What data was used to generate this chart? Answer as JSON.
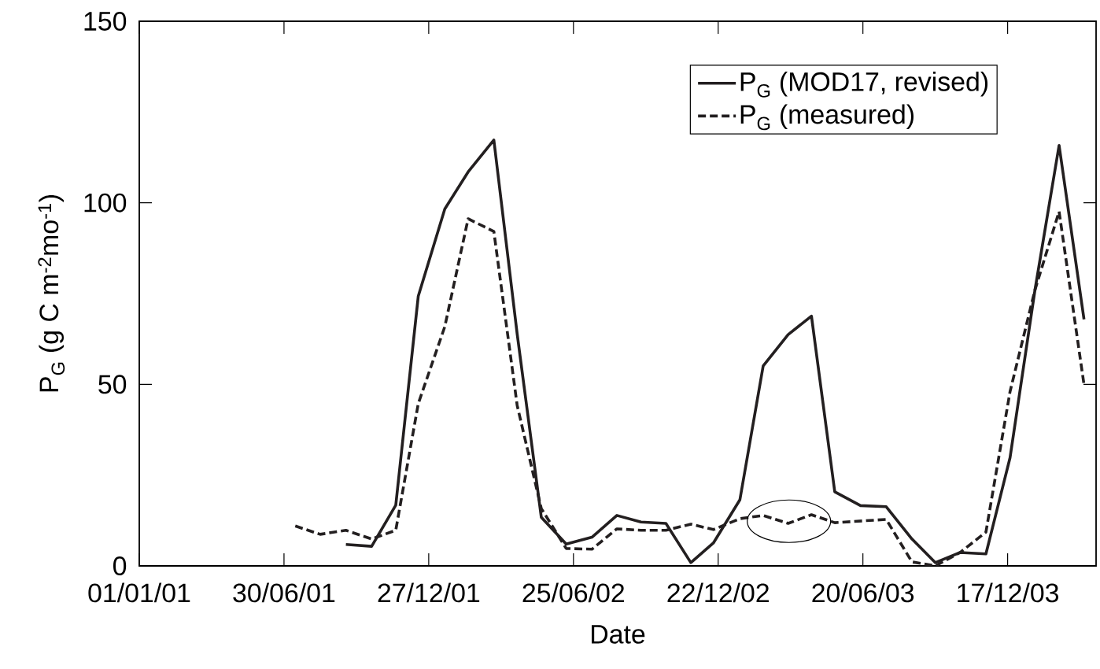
{
  "chart_data": {
    "type": "line",
    "xlabel": "Date",
    "ylabel": "P$_{G}$ (g C m$^{-2}$mo$^{-1}$)",
    "xlim": [
      "2001-01-01",
      "2004-04-05"
    ],
    "xticks": [
      {
        "value": "2001-01-01",
        "label": "01/01/01"
      },
      {
        "value": "2001-06-30",
        "label": "30/06/01"
      },
      {
        "value": "2001-12-27",
        "label": "27/12/01"
      },
      {
        "value": "2002-06-25",
        "label": "25/06/02"
      },
      {
        "value": "2002-12-22",
        "label": "22/12/02"
      },
      {
        "value": "2003-06-20",
        "label": "20/06/03"
      },
      {
        "value": "2003-12-17",
        "label": "17/12/03"
      }
    ],
    "ylim": [
      0,
      150
    ],
    "yticks": [
      0,
      50,
      100,
      150
    ],
    "legend": "top right",
    "series": [
      {
        "name": "P$_{G}$ (MOD17, revised)",
        "color": "#231f20",
        "line_style": "solid",
        "x": [
          "2001-09-15",
          "2001-10-17",
          "2001-11-16",
          "2001-12-14",
          "2002-01-16",
          "2002-02-14",
          "2002-03-18",
          "2002-04-16",
          "2002-05-16",
          "2002-06-16",
          "2002-07-18",
          "2002-08-18",
          "2002-09-17",
          "2002-10-18",
          "2002-11-18",
          "2002-12-16",
          "2003-01-18",
          "2003-02-16",
          "2003-03-19",
          "2003-04-17",
          "2003-05-16",
          "2003-06-17",
          "2003-07-19",
          "2003-08-20",
          "2003-09-18",
          "2003-10-19",
          "2003-11-20",
          "2003-12-20",
          "2004-01-20",
          "2004-02-19",
          "2004-03-21"
        ],
        "values": [
          5.9,
          5.4,
          16.7,
          74.3,
          98.3,
          108.5,
          117.3,
          63.9,
          13.4,
          6.0,
          7.9,
          13.9,
          12.1,
          11.7,
          0.9,
          6.3,
          18.2,
          55.1,
          63.7,
          68.8,
          20.4,
          16.6,
          16.3,
          7.4,
          0.9,
          3.7,
          3.3,
          29.8,
          76.0,
          115.8,
          67.9
        ]
      },
      {
        "name": "P$_{G}$ (measured)",
        "color": "#231f20",
        "line_style": "dashed",
        "x": [
          "2001-07-14",
          "2001-08-14",
          "2001-09-15",
          "2001-10-17",
          "2001-11-16",
          "2001-12-14",
          "2002-01-16",
          "2002-02-14",
          "2002-03-18",
          "2002-04-16",
          "2002-05-16",
          "2002-06-16",
          "2002-07-18",
          "2002-08-18",
          "2002-09-17",
          "2002-10-18",
          "2002-11-18",
          "2002-12-16",
          "2003-01-18",
          "2003-02-16",
          "2003-03-19",
          "2003-04-17",
          "2003-05-16",
          "2003-07-19",
          "2003-08-20",
          "2003-09-18",
          "2003-10-19",
          "2003-11-20",
          "2003-12-20",
          "2004-01-20",
          "2004-02-19",
          "2004-03-21"
        ],
        "values": [
          11.0,
          8.7,
          9.8,
          7.4,
          9.8,
          44.7,
          65.9,
          95.6,
          92.1,
          44.2,
          15.8,
          4.8,
          4.6,
          10.2,
          9.8,
          9.8,
          11.5,
          10.0,
          13.0,
          13.9,
          11.7,
          14.1,
          11.9,
          12.8,
          1.1,
          0.0,
          3.7,
          9.3,
          48.0,
          76.0,
          97.6,
          49.9
        ]
      }
    ]
  }
}
